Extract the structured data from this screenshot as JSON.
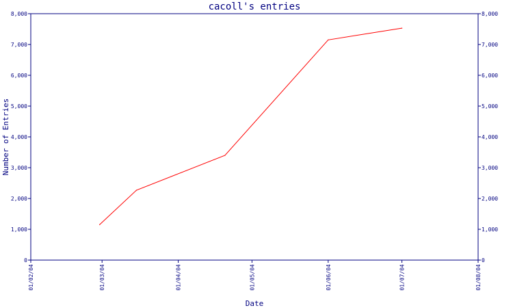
{
  "chart_data": {
    "type": "line",
    "title": "cacoll's entries",
    "xlabel": "Date",
    "ylabel": "Number of Entries",
    "x_ticks": [
      "01/02/04",
      "01/03/04",
      "01/04/04",
      "01/05/04",
      "01/06/04",
      "01/07/04",
      "01/08/04"
    ],
    "y_ticks": [
      "0",
      "1,000",
      "2,000",
      "3,000",
      "4,000",
      "5,000",
      "6,000",
      "7,000",
      "8,000"
    ],
    "ylim": [
      0,
      8000
    ],
    "xlim": [
      "2004-02-01",
      "2004-08-01"
    ],
    "y_axis_right": true,
    "grid": false,
    "series": [
      {
        "color": "#ff0000",
        "points": [
          {
            "x": "2004-02-29",
            "y": 1150
          },
          {
            "x": "2004-03-15",
            "y": 2270
          },
          {
            "x": "2004-04-20",
            "y": 3400
          },
          {
            "x": "2004-06-01",
            "y": 7150
          },
          {
            "x": "2004-07-01",
            "y": 7530
          }
        ]
      }
    ],
    "colors": {
      "axis": "#000080",
      "text": "#000080",
      "line": "#ff0000",
      "background": "#ffffff"
    }
  }
}
